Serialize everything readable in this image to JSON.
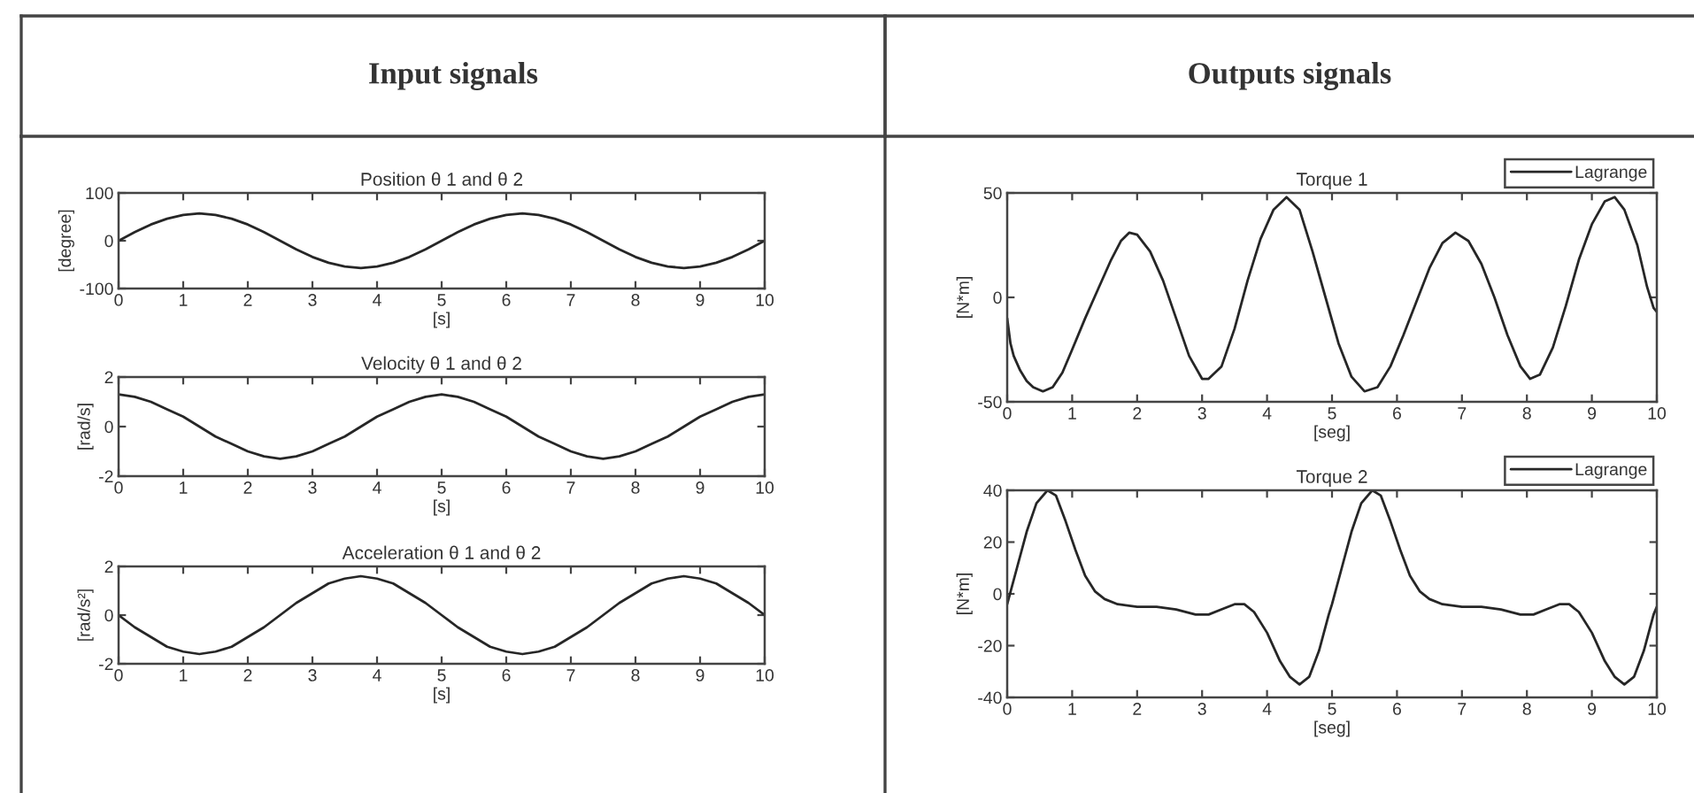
{
  "chart_data": [
    {
      "type": "other",
      "title": "Input signals"
    },
    {
      "type": "other",
      "title": "Outputs signals"
    },
    {
      "type": "line",
      "title": "Position θ 1 and θ 2",
      "xlabel": "[s]",
      "ylabel": "[degree]",
      "color": "#262626",
      "x": [
        0,
        0.25,
        0.5,
        0.75,
        1,
        1.25,
        1.5,
        1.75,
        2,
        2.25,
        2.5,
        2.75,
        3,
        3.25,
        3.5,
        3.75,
        4,
        4.25,
        4.5,
        4.75,
        5,
        5.25,
        5.5,
        5.75,
        6,
        6.25,
        6.5,
        6.75,
        7,
        7.25,
        7.5,
        7.75,
        8,
        8.25,
        8.5,
        8.75,
        9,
        9.25,
        9.5,
        9.75,
        10
      ],
      "values": [
        0,
        18,
        34,
        46,
        54,
        57,
        54,
        46,
        34,
        18,
        0,
        -18,
        -34,
        -46,
        -54,
        -57,
        -54,
        -46,
        -34,
        -18,
        0,
        18,
        34,
        46,
        54,
        57,
        54,
        46,
        34,
        18,
        0,
        -18,
        -34,
        -46,
        -54,
        -57,
        -54,
        -46,
        -34,
        -18,
        0
      ],
      "xlim": [
        0,
        10
      ],
      "xticks": [
        0,
        1,
        2,
        3,
        4,
        5,
        6,
        7,
        8,
        9,
        10
      ],
      "ylim": [
        -100,
        100
      ],
      "yticks": [
        -100,
        0,
        100
      ]
    },
    {
      "type": "line",
      "title": "Velocity θ 1 and θ 2",
      "xlabel": "[s]",
      "ylabel": "[rad/s]",
      "color": "#262626",
      "x": [
        0,
        0.25,
        0.5,
        0.75,
        1,
        1.25,
        1.5,
        1.75,
        2,
        2.25,
        2.5,
        2.75,
        3,
        3.25,
        3.5,
        3.75,
        4,
        4.25,
        4.5,
        4.75,
        5,
        5.25,
        5.5,
        5.75,
        6,
        6.25,
        6.5,
        6.75,
        7,
        7.25,
        7.5,
        7.75,
        8,
        8.25,
        8.5,
        8.75,
        9,
        9.25,
        9.5,
        9.75,
        10
      ],
      "values": [
        1.3,
        1.2,
        1.0,
        0.7,
        0.4,
        0,
        -0.4,
        -0.7,
        -1.0,
        -1.2,
        -1.3,
        -1.2,
        -1.0,
        -0.7,
        -0.4,
        0,
        0.4,
        0.7,
        1.0,
        1.2,
        1.3,
        1.2,
        1.0,
        0.7,
        0.4,
        0,
        -0.4,
        -0.7,
        -1.0,
        -1.2,
        -1.3,
        -1.2,
        -1.0,
        -0.7,
        -0.4,
        0,
        0.4,
        0.7,
        1.0,
        1.2,
        1.3
      ],
      "xlim": [
        0,
        10
      ],
      "xticks": [
        0,
        1,
        2,
        3,
        4,
        5,
        6,
        7,
        8,
        9,
        10
      ],
      "ylim": [
        -2,
        2
      ],
      "yticks": [
        -2,
        0,
        2
      ]
    },
    {
      "type": "line",
      "title": "Acceleration θ 1 and θ 2",
      "xlabel": "[s]",
      "ylabel": "[rad/s²]",
      "color": "#262626",
      "x": [
        0,
        0.25,
        0.5,
        0.75,
        1,
        1.25,
        1.5,
        1.75,
        2,
        2.25,
        2.5,
        2.75,
        3,
        3.25,
        3.5,
        3.75,
        4,
        4.25,
        4.5,
        4.75,
        5,
        5.25,
        5.5,
        5.75,
        6,
        6.25,
        6.5,
        6.75,
        7,
        7.25,
        7.5,
        7.75,
        8,
        8.25,
        8.5,
        8.75,
        9,
        9.25,
        9.5,
        9.75,
        10
      ],
      "values": [
        0,
        -0.5,
        -0.9,
        -1.3,
        -1.5,
        -1.6,
        -1.5,
        -1.3,
        -0.9,
        -0.5,
        0,
        0.5,
        0.9,
        1.3,
        1.5,
        1.6,
        1.5,
        1.3,
        0.9,
        0.5,
        0,
        -0.5,
        -0.9,
        -1.3,
        -1.5,
        -1.6,
        -1.5,
        -1.3,
        -0.9,
        -0.5,
        0,
        0.5,
        0.9,
        1.3,
        1.5,
        1.6,
        1.5,
        1.3,
        0.9,
        0.5,
        0
      ],
      "xlim": [
        0,
        10
      ],
      "xticks": [
        0,
        1,
        2,
        3,
        4,
        5,
        6,
        7,
        8,
        9,
        10
      ],
      "ylim": [
        -2,
        2
      ],
      "yticks": [
        -2,
        0,
        2
      ]
    },
    {
      "type": "line",
      "title": "Torque 1",
      "xlabel": "[seg]",
      "ylabel": "[N*m]",
      "legend": "top right",
      "series": [
        {
          "name": "Lagrange",
          "color": "#262626",
          "x": [
            0,
            0.05,
            0.1,
            0.2,
            0.3,
            0.4,
            0.55,
            0.7,
            0.85,
            1.0,
            1.2,
            1.4,
            1.6,
            1.75,
            1.88,
            2.0,
            2.2,
            2.4,
            2.6,
            2.8,
            3.0,
            3.1,
            3.3,
            3.5,
            3.7,
            3.9,
            4.1,
            4.3,
            4.5,
            4.7,
            4.9,
            5.1,
            5.3,
            5.5,
            5.7,
            5.9,
            6.1,
            6.3,
            6.5,
            6.7,
            6.9,
            7.1,
            7.3,
            7.5,
            7.7,
            7.9,
            8.05,
            8.2,
            8.4,
            8.6,
            8.8,
            9.0,
            9.2,
            9.35,
            9.5,
            9.7,
            9.85,
            9.95,
            10
          ],
          "values": [
            -10,
            -22,
            -28,
            -35,
            -40,
            -43,
            -45,
            -43,
            -36,
            -25,
            -10,
            4,
            18,
            27,
            31,
            30,
            22,
            8,
            -10,
            -28,
            -39,
            -39,
            -33,
            -15,
            8,
            28,
            42,
            48,
            42,
            22,
            0,
            -22,
            -38,
            -45,
            -43,
            -33,
            -18,
            -2,
            14,
            26,
            31,
            27,
            16,
            0,
            -18,
            -33,
            -39,
            -37,
            -24,
            -4,
            18,
            35,
            46,
            48,
            42,
            25,
            5,
            -5,
            -7
          ]
        }
      ],
      "xlim": [
        0,
        10
      ],
      "xticks": [
        0,
        1,
        2,
        3,
        4,
        5,
        6,
        7,
        8,
        9,
        10
      ],
      "ylim": [
        -50,
        50
      ],
      "yticks": [
        -50,
        0,
        50
      ]
    },
    {
      "type": "line",
      "title": "Torque 2",
      "xlabel": "[seg]",
      "ylabel": "[N*m]",
      "legend": "top right",
      "series": [
        {
          "name": "Lagrange",
          "color": "#262626",
          "x": [
            0,
            0.15,
            0.3,
            0.45,
            0.62,
            0.75,
            0.9,
            1.05,
            1.2,
            1.35,
            1.5,
            1.7,
            2.0,
            2.3,
            2.6,
            2.9,
            3.1,
            3.3,
            3.5,
            3.65,
            3.8,
            4.0,
            4.2,
            4.35,
            4.5,
            4.65,
            4.8,
            4.95,
            5,
            5.15,
            5.3,
            5.45,
            5.62,
            5.75,
            5.9,
            6.05,
            6.2,
            6.35,
            6.5,
            6.7,
            7.0,
            7.3,
            7.6,
            7.9,
            8.1,
            8.3,
            8.5,
            8.65,
            8.8,
            9.0,
            9.2,
            9.35,
            9.5,
            9.65,
            9.8,
            9.95,
            10
          ],
          "values": [
            -4,
            10,
            24,
            35,
            40,
            38,
            28,
            17,
            7,
            1,
            -2,
            -4,
            -5,
            -5,
            -6,
            -8,
            -8,
            -6,
            -4,
            -4,
            -7,
            -15,
            -26,
            -32,
            -35,
            -32,
            -22,
            -8,
            -4,
            10,
            24,
            35,
            40,
            38,
            28,
            17,
            7,
            1,
            -2,
            -4,
            -5,
            -5,
            -6,
            -8,
            -8,
            -6,
            -4,
            -4,
            -7,
            -15,
            -26,
            -32,
            -35,
            -32,
            -22,
            -8,
            -5
          ]
        }
      ],
      "xlim": [
        0,
        10
      ],
      "xticks": [
        0,
        1,
        2,
        3,
        4,
        5,
        6,
        7,
        8,
        9,
        10
      ],
      "ylim": [
        -40,
        40
      ],
      "yticks": [
        -40,
        -20,
        0,
        20,
        40
      ]
    }
  ]
}
